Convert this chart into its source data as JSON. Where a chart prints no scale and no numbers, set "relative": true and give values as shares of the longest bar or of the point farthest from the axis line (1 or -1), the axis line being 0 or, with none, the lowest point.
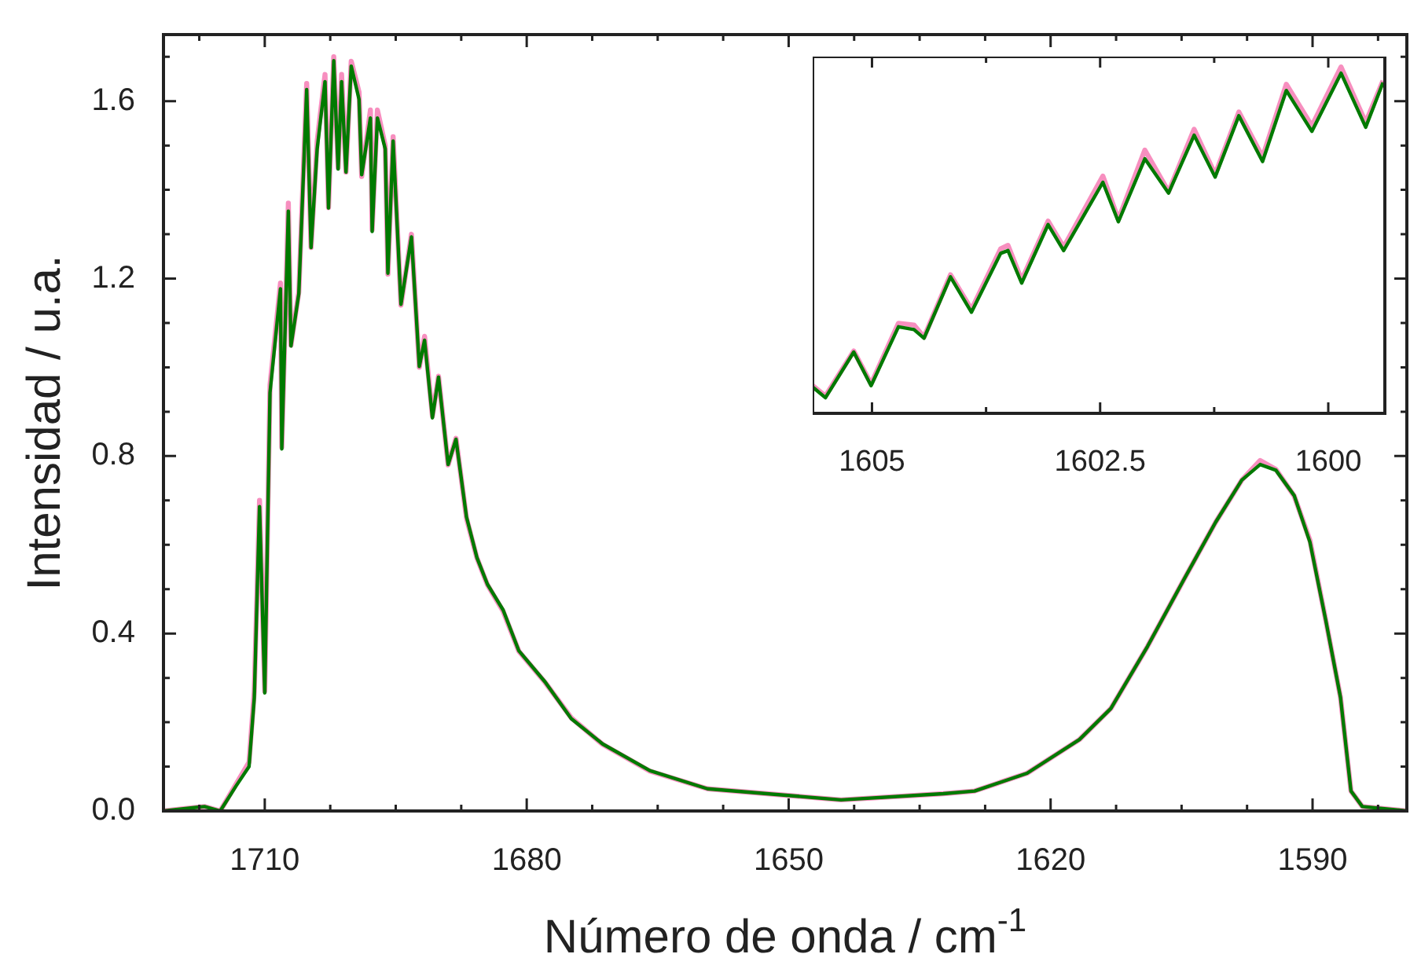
{
  "chart_data": [
    {
      "type": "line",
      "xlabel": "Número de onda / cm$^{-1}$",
      "ylabel": "Intensidad / u.a.",
      "xlim": [
        1721.6,
        1579.2
      ],
      "ylim": [
        0,
        1.75
      ],
      "xticks": [
        {
          "value": 1717.5,
          "label": null
        },
        1710,
        {
          "value": 1702.5,
          "label": null
        },
        {
          "value": 1695,
          "label": null
        },
        {
          "value": 1687.5,
          "label": null
        },
        1680,
        {
          "value": 1672.5,
          "label": null
        },
        {
          "value": 1665,
          "label": null
        },
        {
          "value": 1657.5,
          "label": null
        },
        1650,
        {
          "value": 1642.5,
          "label": null
        },
        {
          "value": 1635,
          "label": null
        },
        {
          "value": 1627.5,
          "label": null
        },
        1620,
        {
          "value": 1612.5,
          "label": null
        },
        {
          "value": 1605,
          "label": null
        },
        {
          "value": 1597.5,
          "label": null
        },
        1590,
        {
          "value": 1582.5,
          "label": null
        }
      ],
      "yticks": [
        {
          "value": 0,
          "label": "0.0"
        },
        {
          "value": 0.1,
          "label": null
        },
        {
          "value": 0.2,
          "label": null
        },
        {
          "value": 0.3,
          "label": null
        },
        0.4,
        {
          "value": 0.5,
          "label": null
        },
        {
          "value": 0.6,
          "label": null
        },
        {
          "value": 0.7,
          "label": null
        },
        0.8,
        {
          "value": 0.9,
          "label": null
        },
        {
          "value": 1.0,
          "label": null
        },
        {
          "value": 1.1,
          "label": null
        },
        1.2,
        {
          "value": 1.3,
          "label": null
        },
        {
          "value": 1.4,
          "label": null
        },
        {
          "value": 1.5,
          "label": null
        },
        1.6,
        {
          "value": 1.7,
          "label": null
        }
      ],
      "x": [
        1721.6,
        1716.9,
        1715.1,
        1713.3,
        1711.8,
        1711.2,
        1710.6,
        1710.0,
        1709.4,
        1708.2,
        1708.05,
        1707.3,
        1707.0,
        1706.1,
        1705.2,
        1704.7,
        1704.0,
        1703.1,
        1702.7,
        1702.1,
        1701.6,
        1701.2,
        1700.7,
        1700.1,
        1699.2,
        1698.9,
        1697.9,
        1697.7,
        1697.1,
        1696.2,
        1695.9,
        1695.3,
        1694.4,
        1693.2,
        1692.3,
        1691.7,
        1690.8,
        1690.1,
        1689.0,
        1688.1,
        1686.9,
        1685.7,
        1684.5,
        1682.7,
        1680.9,
        1677.9,
        1674.9,
        1671.3,
        1665.9,
        1659.3,
        1644.0,
        1632.3,
        1628.7,
        1622.7,
        1616.7,
        1613.1,
        1608.9,
        1604.7,
        1601.1,
        1598.1,
        1596.0,
        1594.2,
        1592.1,
        1590.3,
        1588.5,
        1586.8,
        1585.6,
        1584.3,
        1579.2
      ],
      "series": [
        {
          "color": "#f78fbf",
          "values": [
            0,
            0.01,
            0,
            0.06,
            0.11,
            0.27,
            0.7,
            0.27,
            0.96,
            1.19,
            0.82,
            1.37,
            1.05,
            1.17,
            1.64,
            1.27,
            1.51,
            1.66,
            1.36,
            1.7,
            1.45,
            1.66,
            1.44,
            1.69,
            1.62,
            1.43,
            1.58,
            1.31,
            1.58,
            1.5,
            1.21,
            1.52,
            1.14,
            1.3,
            1.0,
            1.07,
            0.89,
            0.98,
            0.78,
            0.84,
            0.66,
            0.57,
            0.51,
            0.45,
            0.36,
            0.29,
            0.21,
            0.15,
            0.09,
            0.05,
            0.025,
            0.039,
            0.045,
            0.085,
            0.161,
            0.231,
            0.371,
            0.523,
            0.651,
            0.746,
            0.79,
            0.77,
            0.71,
            0.61,
            0.431,
            0.256,
            0.045,
            0.01,
            0
          ]
        },
        {
          "color": "#007a00",
          "values": [
            0,
            0.01,
            0,
            0.056,
            0.1,
            0.255,
            0.686,
            0.266,
            0.943,
            1.177,
            0.816,
            1.352,
            1.048,
            1.166,
            1.626,
            1.27,
            1.492,
            1.644,
            1.359,
            1.691,
            1.447,
            1.644,
            1.44,
            1.679,
            1.604,
            1.434,
            1.562,
            1.306,
            1.562,
            1.492,
            1.212,
            1.51,
            1.142,
            1.294,
            1.002,
            1.061,
            0.886,
            0.978,
            0.781,
            0.838,
            0.663,
            0.571,
            0.511,
            0.453,
            0.361,
            0.291,
            0.208,
            0.151,
            0.091,
            0.05,
            0.025,
            0.039,
            0.045,
            0.085,
            0.161,
            0.231,
            0.371,
            0.523,
            0.651,
            0.746,
            0.781,
            0.768,
            0.711,
            0.606,
            0.431,
            0.256,
            0.045,
            0.01,
            0
          ]
        }
      ]
    },
    {
      "type": "line",
      "relative": true,
      "xlim": [
        1605.65,
        1599.38
      ],
      "xticks": [
        1605,
        {
          "value": 1603.75,
          "label": null
        },
        1602.5,
        {
          "value": 1601.25,
          "label": null
        },
        1600
      ],
      "x": [
        1605.65,
        1605.51,
        1605.2,
        1605.01,
        1604.71,
        1604.54,
        1604.43,
        1604.14,
        1603.91,
        1603.59,
        1603.51,
        1603.36,
        1603.07,
        1602.9,
        1602.47,
        1602.3,
        1602.01,
        1601.75,
        1601.47,
        1601.24,
        1600.98,
        1600.72,
        1600.46,
        1600.18,
        1599.86,
        1599.59,
        1599.4
      ],
      "series": [
        {
          "color": "#f78fbf",
          "values": [
            0.08,
            0.05,
            0.18,
            0.085,
            0.26,
            0.255,
            0.22,
            0.4,
            0.3,
            0.475,
            0.485,
            0.385,
            0.555,
            0.48,
            0.685,
            0.56,
            0.76,
            0.64,
            0.82,
            0.69,
            0.87,
            0.74,
            0.95,
            0.83,
            1.0,
            0.84,
            0.96
          ]
        },
        {
          "color": "#007a00",
          "values": [
            0.076,
            0.045,
            0.177,
            0.08,
            0.25,
            0.242,
            0.217,
            0.394,
            0.292,
            0.462,
            0.47,
            0.376,
            0.545,
            0.47,
            0.667,
            0.553,
            0.735,
            0.636,
            0.803,
            0.682,
            0.859,
            0.727,
            0.932,
            0.814,
            0.982,
            0.826,
            0.955
          ]
        }
      ]
    }
  ]
}
